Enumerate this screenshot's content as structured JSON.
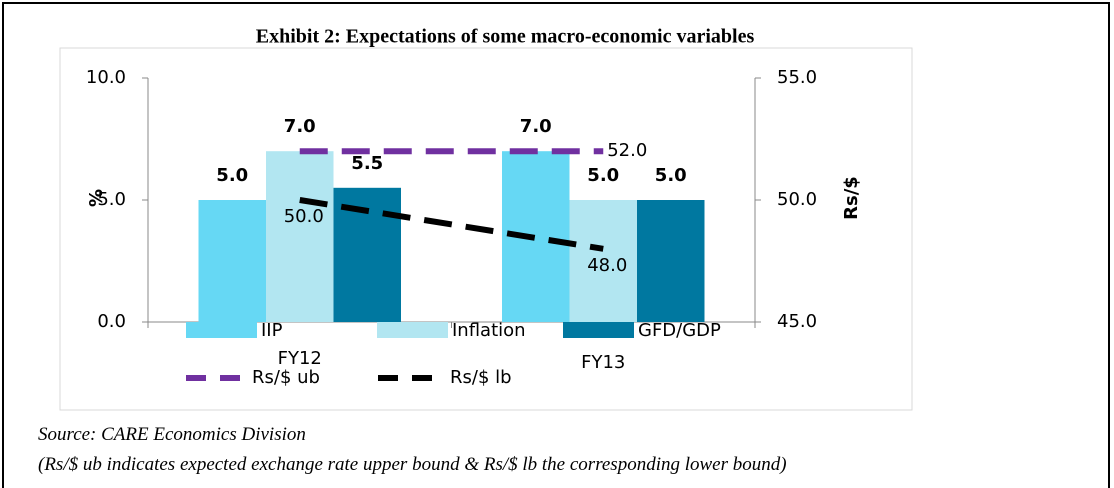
{
  "chart_data": {
    "type": "bar",
    "title": "Exhibit 2: Expectations of some macro-economic variables",
    "categories": [
      "FY12",
      "FY13"
    ],
    "series": [
      {
        "name": "IIP",
        "type": "bar",
        "color": "#66d8f4",
        "values": [
          5,
          7
        ],
        "value_labels": [
          "5.0",
          "7.0"
        ]
      },
      {
        "name": "Inflation",
        "type": "bar",
        "color": "#b2e6f1",
        "values": [
          7,
          5
        ],
        "value_labels": [
          "7.0",
          "5.0"
        ]
      },
      {
        "name": "GFD/GDP",
        "type": "bar",
        "color": "#0078a0",
        "values": [
          5.5,
          5
        ],
        "value_labels": [
          "5.5",
          "5.0"
        ]
      },
      {
        "name": "Rs/$ ub",
        "type": "line",
        "axis": "y2",
        "color": "#7030a0",
        "values": [
          52,
          52
        ],
        "value_labels": [
          null,
          "52.0"
        ]
      },
      {
        "name": "Rs/$ lb",
        "type": "line",
        "axis": "y2",
        "color": "#000000",
        "values": [
          50,
          48
        ],
        "value_labels": [
          "50.0",
          "48.0"
        ]
      }
    ],
    "ylabel": "%",
    "y2label": "Rs/$",
    "ylim": [
      0,
      10
    ],
    "yticks": [
      {
        "value": 0,
        "label": "0.0"
      },
      {
        "value": 5,
        "label": "5.0"
      },
      {
        "value": 10,
        "label": "10.0"
      }
    ],
    "y2lim": [
      45,
      55
    ],
    "y2ticks": [
      {
        "value": 45,
        "label": "45.0"
      },
      {
        "value": 50,
        "label": "50.0"
      },
      {
        "value": 55,
        "label": "55.0"
      }
    ]
  },
  "source": "Source: CARE Economics Division",
  "note": "(Rs/$ ub indicates expected exchange rate upper bound & Rs/$ lb the corresponding lower bound)"
}
